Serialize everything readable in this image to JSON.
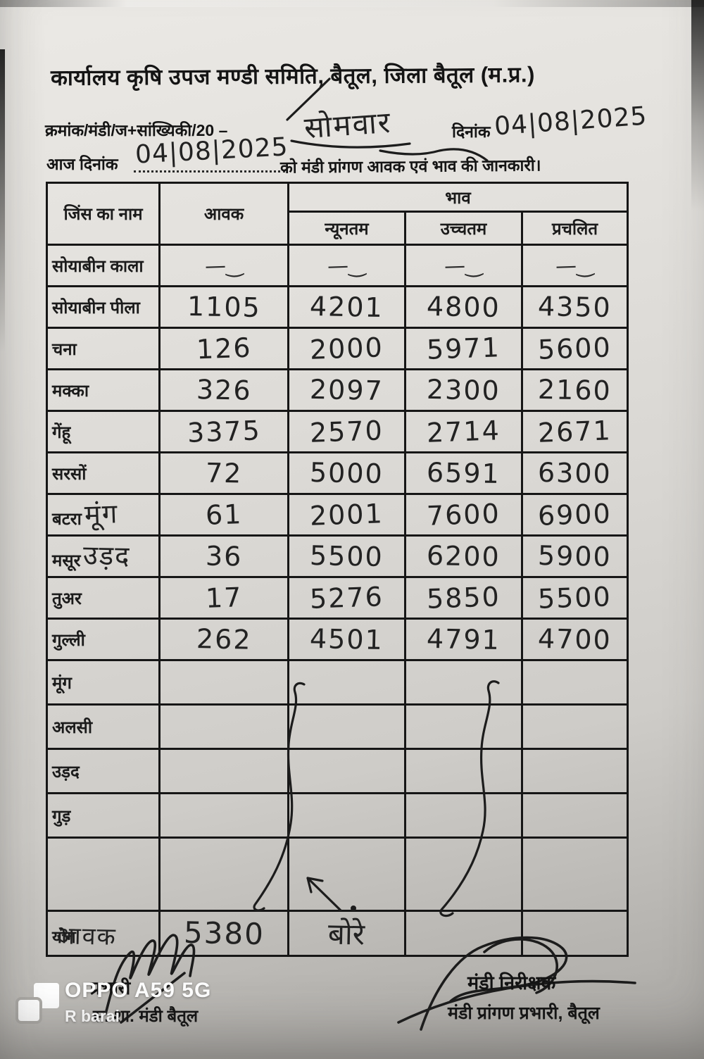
{
  "header": {
    "title": "कार्यालय कृषि उपज मण्डी समिति, बैतूल, जिला बैतूल (म.प्र.)",
    "ref_line": {
      "prefix": "क्रमांक/मंडी/ज+सांख्यिकी/20  –",
      "handwritten_day": "सोमवार",
      "date_label": "दिनांक",
      "handwritten_date": "04|08|2025"
    },
    "today_line": {
      "prefix": "आज दिनांक",
      "handwritten_date": "04|08|2025",
      "suffix": "को मंडी प्रांगण आवक एवं भाव की जानकारी।"
    }
  },
  "table": {
    "headers": {
      "commodity": "जिंस का नाम",
      "arrival": "आवक",
      "price_group": "भाव",
      "min": "न्यूनतम",
      "max": "उच्चतम",
      "modal": "प्रचलित"
    },
    "rows": [
      {
        "name": "सोयाबीन काला",
        "annot": "",
        "arrival": "—‿",
        "min": "—‿",
        "max": "—‿",
        "modal": "—‿"
      },
      {
        "name": "सोयाबीन पीला",
        "annot": "",
        "arrival": "1105",
        "min": "4201",
        "max": "4800",
        "modal": "4350"
      },
      {
        "name": "चना",
        "annot": "",
        "arrival": "126",
        "min": "2000",
        "max": "5971",
        "modal": "5600"
      },
      {
        "name": "मक्का",
        "annot": "",
        "arrival": "326",
        "min": "2097",
        "max": "2300",
        "modal": "2160"
      },
      {
        "name": "गेंहू",
        "annot": "",
        "arrival": "3375",
        "min": "2570",
        "max": "2714",
        "modal": "2671"
      },
      {
        "name": "सरसों",
        "annot": "",
        "arrival": "72",
        "min": "5000",
        "max": "6591",
        "modal": "6300"
      },
      {
        "name": "बटरा",
        "annot": "मूंग",
        "arrival": "61",
        "min": "2001",
        "max": "7600",
        "modal": "6900"
      },
      {
        "name": "मसूर",
        "annot": "उड़द",
        "arrival": "36",
        "min": "5500",
        "max": "6200",
        "modal": "5900"
      },
      {
        "name": "तुअर",
        "annot": "",
        "arrival": "17",
        "min": "5276",
        "max": "5850",
        "modal": "5500"
      },
      {
        "name": "गुल्ली",
        "annot": "",
        "arrival": "262",
        "min": "4501",
        "max": "4791",
        "modal": "4700"
      },
      {
        "name": "मूंग",
        "annot": "",
        "arrival": "",
        "min": "",
        "max": "",
        "modal": ""
      },
      {
        "name": "अलसी",
        "annot": "",
        "arrival": "",
        "min": "",
        "max": "",
        "modal": ""
      },
      {
        "name": "उड़द",
        "annot": "",
        "arrival": "",
        "min": "",
        "max": "",
        "modal": ""
      },
      {
        "name": "गुड़",
        "annot": "",
        "arrival": "",
        "min": "",
        "max": "",
        "modal": ""
      },
      {
        "name": "",
        "annot": "",
        "arrival": "",
        "min": "",
        "max": "",
        "modal": ""
      },
      {
        "name": "योग",
        "annot": "आवक",
        "arrival": "5380",
        "min": "बोरे",
        "max": "",
        "modal": ""
      }
    ]
  },
  "footer": {
    "left": {
      "line1": "प्रभारी",
      "line2": "स. शा. मंडी बैतूल"
    },
    "right": {
      "line1": "मंडी निरीक्षक",
      "line2": "मंडी प्रांगण प्रभारी, बैतूल"
    }
  },
  "watermark": {
    "device": "OPPO A59 5G",
    "user": "R barai"
  },
  "colors": {
    "paper": "#d9d7d3",
    "ink": "#1c1c1c",
    "watermark_text": "#ffffff"
  }
}
